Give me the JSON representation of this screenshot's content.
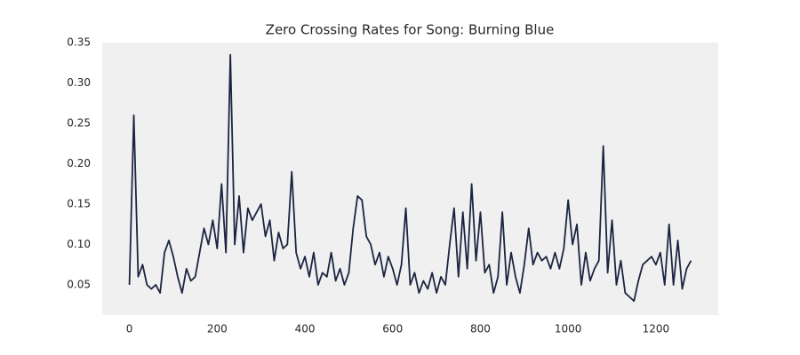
{
  "chart_data": {
    "type": "line",
    "title": "Zero Crossing Rates for Song: Burning Blue",
    "x": [
      0,
      10,
      20,
      30,
      40,
      50,
      60,
      70,
      80,
      90,
      100,
      110,
      120,
      130,
      140,
      150,
      160,
      170,
      180,
      190,
      200,
      210,
      220,
      230,
      240,
      250,
      260,
      270,
      280,
      290,
      300,
      310,
      320,
      330,
      340,
      350,
      360,
      370,
      380,
      390,
      400,
      410,
      420,
      430,
      440,
      450,
      460,
      470,
      480,
      490,
      500,
      510,
      520,
      530,
      540,
      550,
      560,
      570,
      580,
      590,
      600,
      610,
      620,
      630,
      640,
      650,
      660,
      670,
      680,
      690,
      700,
      710,
      720,
      730,
      740,
      750,
      760,
      770,
      780,
      790,
      800,
      810,
      820,
      830,
      840,
      850,
      860,
      870,
      880,
      890,
      900,
      910,
      920,
      930,
      940,
      950,
      960,
      970,
      980,
      990,
      1000,
      1010,
      1020,
      1030,
      1040,
      1050,
      1060,
      1070,
      1080,
      1090,
      1100,
      1110,
      1120,
      1130,
      1140,
      1150,
      1160,
      1170,
      1180,
      1190,
      1200,
      1210,
      1220,
      1230,
      1240,
      1250,
      1260,
      1270,
      1280
    ],
    "series": [
      {
        "color": "#1b2541",
        "values": [
          0.05,
          0.26,
          0.06,
          0.075,
          0.05,
          0.045,
          0.05,
          0.04,
          0.09,
          0.105,
          0.085,
          0.06,
          0.04,
          0.07,
          0.055,
          0.06,
          0.09,
          0.12,
          0.1,
          0.13,
          0.095,
          0.175,
          0.09,
          0.335,
          0.1,
          0.16,
          0.09,
          0.145,
          0.13,
          0.14,
          0.15,
          0.11,
          0.13,
          0.08,
          0.115,
          0.095,
          0.1,
          0.19,
          0.09,
          0.07,
          0.085,
          0.06,
          0.09,
          0.05,
          0.065,
          0.06,
          0.09,
          0.055,
          0.07,
          0.05,
          0.065,
          0.12,
          0.16,
          0.155,
          0.11,
          0.1,
          0.075,
          0.09,
          0.06,
          0.085,
          0.07,
          0.05,
          0.075,
          0.145,
          0.05,
          0.065,
          0.04,
          0.055,
          0.045,
          0.065,
          0.04,
          0.06,
          0.05,
          0.1,
          0.145,
          0.06,
          0.14,
          0.07,
          0.175,
          0.08,
          0.14,
          0.065,
          0.075,
          0.04,
          0.06,
          0.14,
          0.05,
          0.09,
          0.06,
          0.04,
          0.075,
          0.12,
          0.075,
          0.09,
          0.08,
          0.085,
          0.07,
          0.09,
          0.07,
          0.095,
          0.155,
          0.1,
          0.125,
          0.05,
          0.09,
          0.055,
          0.07,
          0.08,
          0.222,
          0.065,
          0.13,
          0.05,
          0.08,
          0.04,
          0.035,
          0.03,
          0.055,
          0.075,
          0.08,
          0.085,
          0.075,
          0.09,
          0.05,
          0.125,
          0.05,
          0.105,
          0.045,
          0.07,
          0.08
        ]
      }
    ],
    "xlim": [
      -62,
      1342
    ],
    "xticks": [
      0,
      200,
      400,
      600,
      800,
      1000,
      1200
    ],
    "ylim": [
      0.0126,
      0.35
    ],
    "yticks": [
      0.05,
      {
        "value": 0.1,
        "label": "0.10"
      },
      0.15,
      {
        "value": 0.2,
        "label": "0.20"
      },
      0.25,
      {
        "value": 0.3,
        "label": "0.30"
      },
      0.35
    ],
    "grid": false
  }
}
